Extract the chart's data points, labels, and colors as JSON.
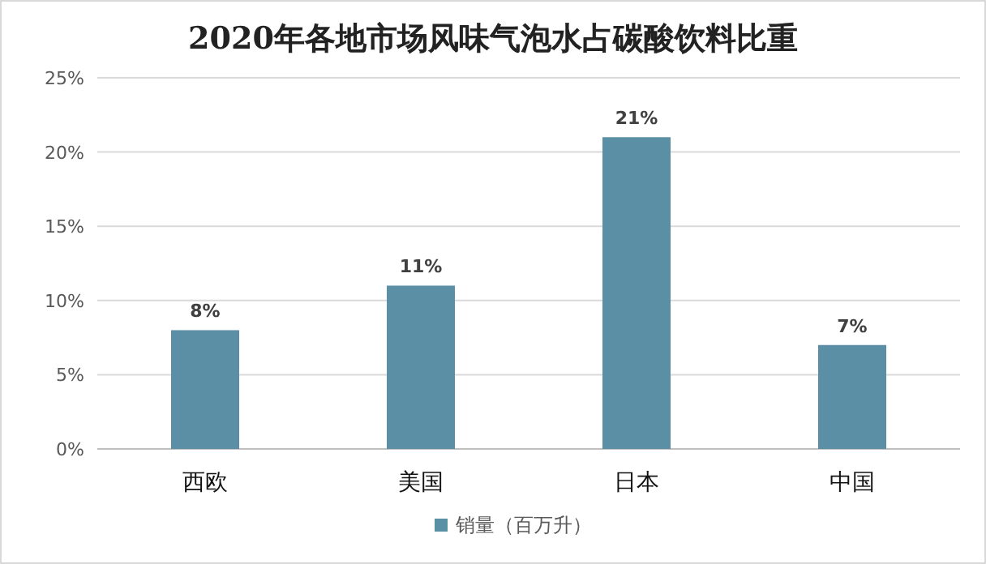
{
  "chart_data": {
    "type": "bar",
    "title": "2020年各地市场风味气泡水占碳酸饮料比重",
    "categories": [
      "西欧",
      "美国",
      "日本",
      "中国"
    ],
    "series": [
      {
        "name": "销量（百万升）",
        "color": "#5b8fa6",
        "values": [
          8,
          11,
          21,
          7
        ],
        "value_labels": [
          "8%",
          "11%",
          "21%",
          "7%"
        ]
      }
    ],
    "ylim": [
      0,
      25
    ],
    "yticks": [
      {
        "value": 0,
        "label": "0%"
      },
      {
        "value": 5,
        "label": "5%"
      },
      {
        "value": 10,
        "label": "10%"
      },
      {
        "value": 15,
        "label": "15%"
      },
      {
        "value": 20,
        "label": "20%"
      },
      {
        "value": 25,
        "label": "25%"
      }
    ],
    "grid": "y",
    "legend": "bottom"
  }
}
